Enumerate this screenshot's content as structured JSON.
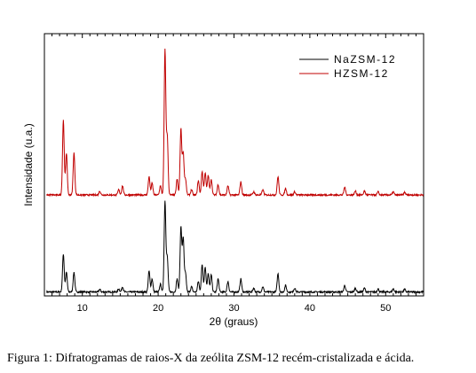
{
  "chart_data": {
    "type": "line",
    "title": "",
    "xlabel": "2θ (graus)",
    "ylabel": "Intensidade (u.a.)",
    "xlim": [
      5,
      55
    ],
    "ylim": [
      0,
      10
    ],
    "x_ticks": [
      10,
      20,
      30,
      40,
      50
    ],
    "grid": false,
    "legend_position": "top-right",
    "series": [
      {
        "name": "NaZSM-12",
        "color": "#000000",
        "offset": 0,
        "base": 0.15,
        "peaks": [
          [
            7.5,
            1.45
          ],
          [
            7.9,
            0.75
          ],
          [
            8.9,
            0.75
          ],
          [
            12.3,
            0.1
          ],
          [
            14.8,
            0.12
          ],
          [
            15.3,
            0.2
          ],
          [
            18.8,
            0.8
          ],
          [
            19.2,
            0.5
          ],
          [
            20.3,
            0.3
          ],
          [
            20.9,
            3.45
          ],
          [
            21.2,
            1.3
          ],
          [
            22.5,
            0.5
          ],
          [
            23.0,
            2.45
          ],
          [
            23.3,
            2.05
          ],
          [
            23.6,
            0.7
          ],
          [
            24.4,
            0.2
          ],
          [
            25.3,
            0.4
          ],
          [
            25.8,
            1.05
          ],
          [
            26.2,
            0.95
          ],
          [
            26.6,
            0.7
          ],
          [
            27.0,
            0.65
          ],
          [
            27.9,
            0.5
          ],
          [
            29.2,
            0.4
          ],
          [
            30.9,
            0.5
          ],
          [
            32.6,
            0.15
          ],
          [
            33.8,
            0.2
          ],
          [
            35.8,
            0.7
          ],
          [
            36.8,
            0.25
          ],
          [
            38.0,
            0.15
          ],
          [
            44.6,
            0.25
          ],
          [
            46.0,
            0.15
          ],
          [
            47.2,
            0.15
          ],
          [
            49.0,
            0.12
          ],
          [
            51.0,
            0.12
          ],
          [
            52.5,
            0.1
          ]
        ]
      },
      {
        "name": "HZSM-12",
        "color": "#c00000",
        "offset": 3.75,
        "base": 0.1,
        "peaks": [
          [
            7.5,
            2.85
          ],
          [
            7.9,
            1.6
          ],
          [
            8.9,
            1.6
          ],
          [
            12.3,
            0.15
          ],
          [
            14.8,
            0.2
          ],
          [
            15.3,
            0.35
          ],
          [
            18.8,
            0.7
          ],
          [
            19.2,
            0.45
          ],
          [
            20.3,
            0.35
          ],
          [
            20.9,
            5.5
          ],
          [
            21.2,
            2.2
          ],
          [
            22.5,
            0.6
          ],
          [
            23.0,
            2.5
          ],
          [
            23.3,
            1.6
          ],
          [
            23.6,
            0.6
          ],
          [
            24.4,
            0.2
          ],
          [
            25.3,
            0.55
          ],
          [
            25.8,
            0.9
          ],
          [
            26.2,
            0.85
          ],
          [
            26.6,
            0.75
          ],
          [
            27.0,
            0.6
          ],
          [
            27.9,
            0.4
          ],
          [
            29.2,
            0.35
          ],
          [
            30.9,
            0.5
          ],
          [
            32.6,
            0.12
          ],
          [
            33.8,
            0.2
          ],
          [
            35.8,
            0.7
          ],
          [
            36.8,
            0.25
          ],
          [
            38.0,
            0.12
          ],
          [
            44.6,
            0.3
          ],
          [
            46.0,
            0.15
          ],
          [
            47.2,
            0.15
          ],
          [
            49.0,
            0.12
          ],
          [
            51.0,
            0.12
          ],
          [
            52.5,
            0.1
          ]
        ]
      }
    ]
  },
  "figure": {
    "caption": "Figura 1: Difratogramas de raios-X da zeólita ZSM-12 recém-cristalizada e ácida."
  }
}
